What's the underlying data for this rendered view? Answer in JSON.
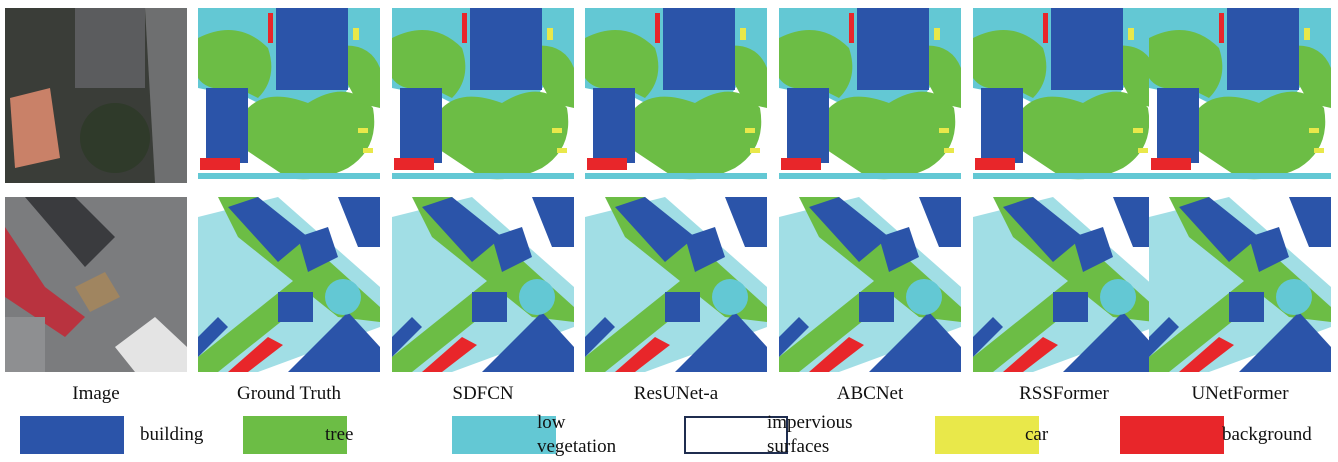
{
  "columns": [
    "Image",
    "Ground Truth",
    "SDFCN",
    "ResUNet-a",
    "ABCNet",
    "RSSFormer",
    "UNetFormer"
  ],
  "legend": [
    {
      "label": "building",
      "color": "#2b54a9"
    },
    {
      "label": "tree",
      "color": "#6cbd45"
    },
    {
      "label": "low vegetation",
      "color": "#63c8d4"
    },
    {
      "label": "impervious surfaces",
      "color": "#ffffff"
    },
    {
      "label": "car",
      "color": "#e9e84a"
    },
    {
      "label": "background",
      "color": "#e8262a"
    }
  ]
}
